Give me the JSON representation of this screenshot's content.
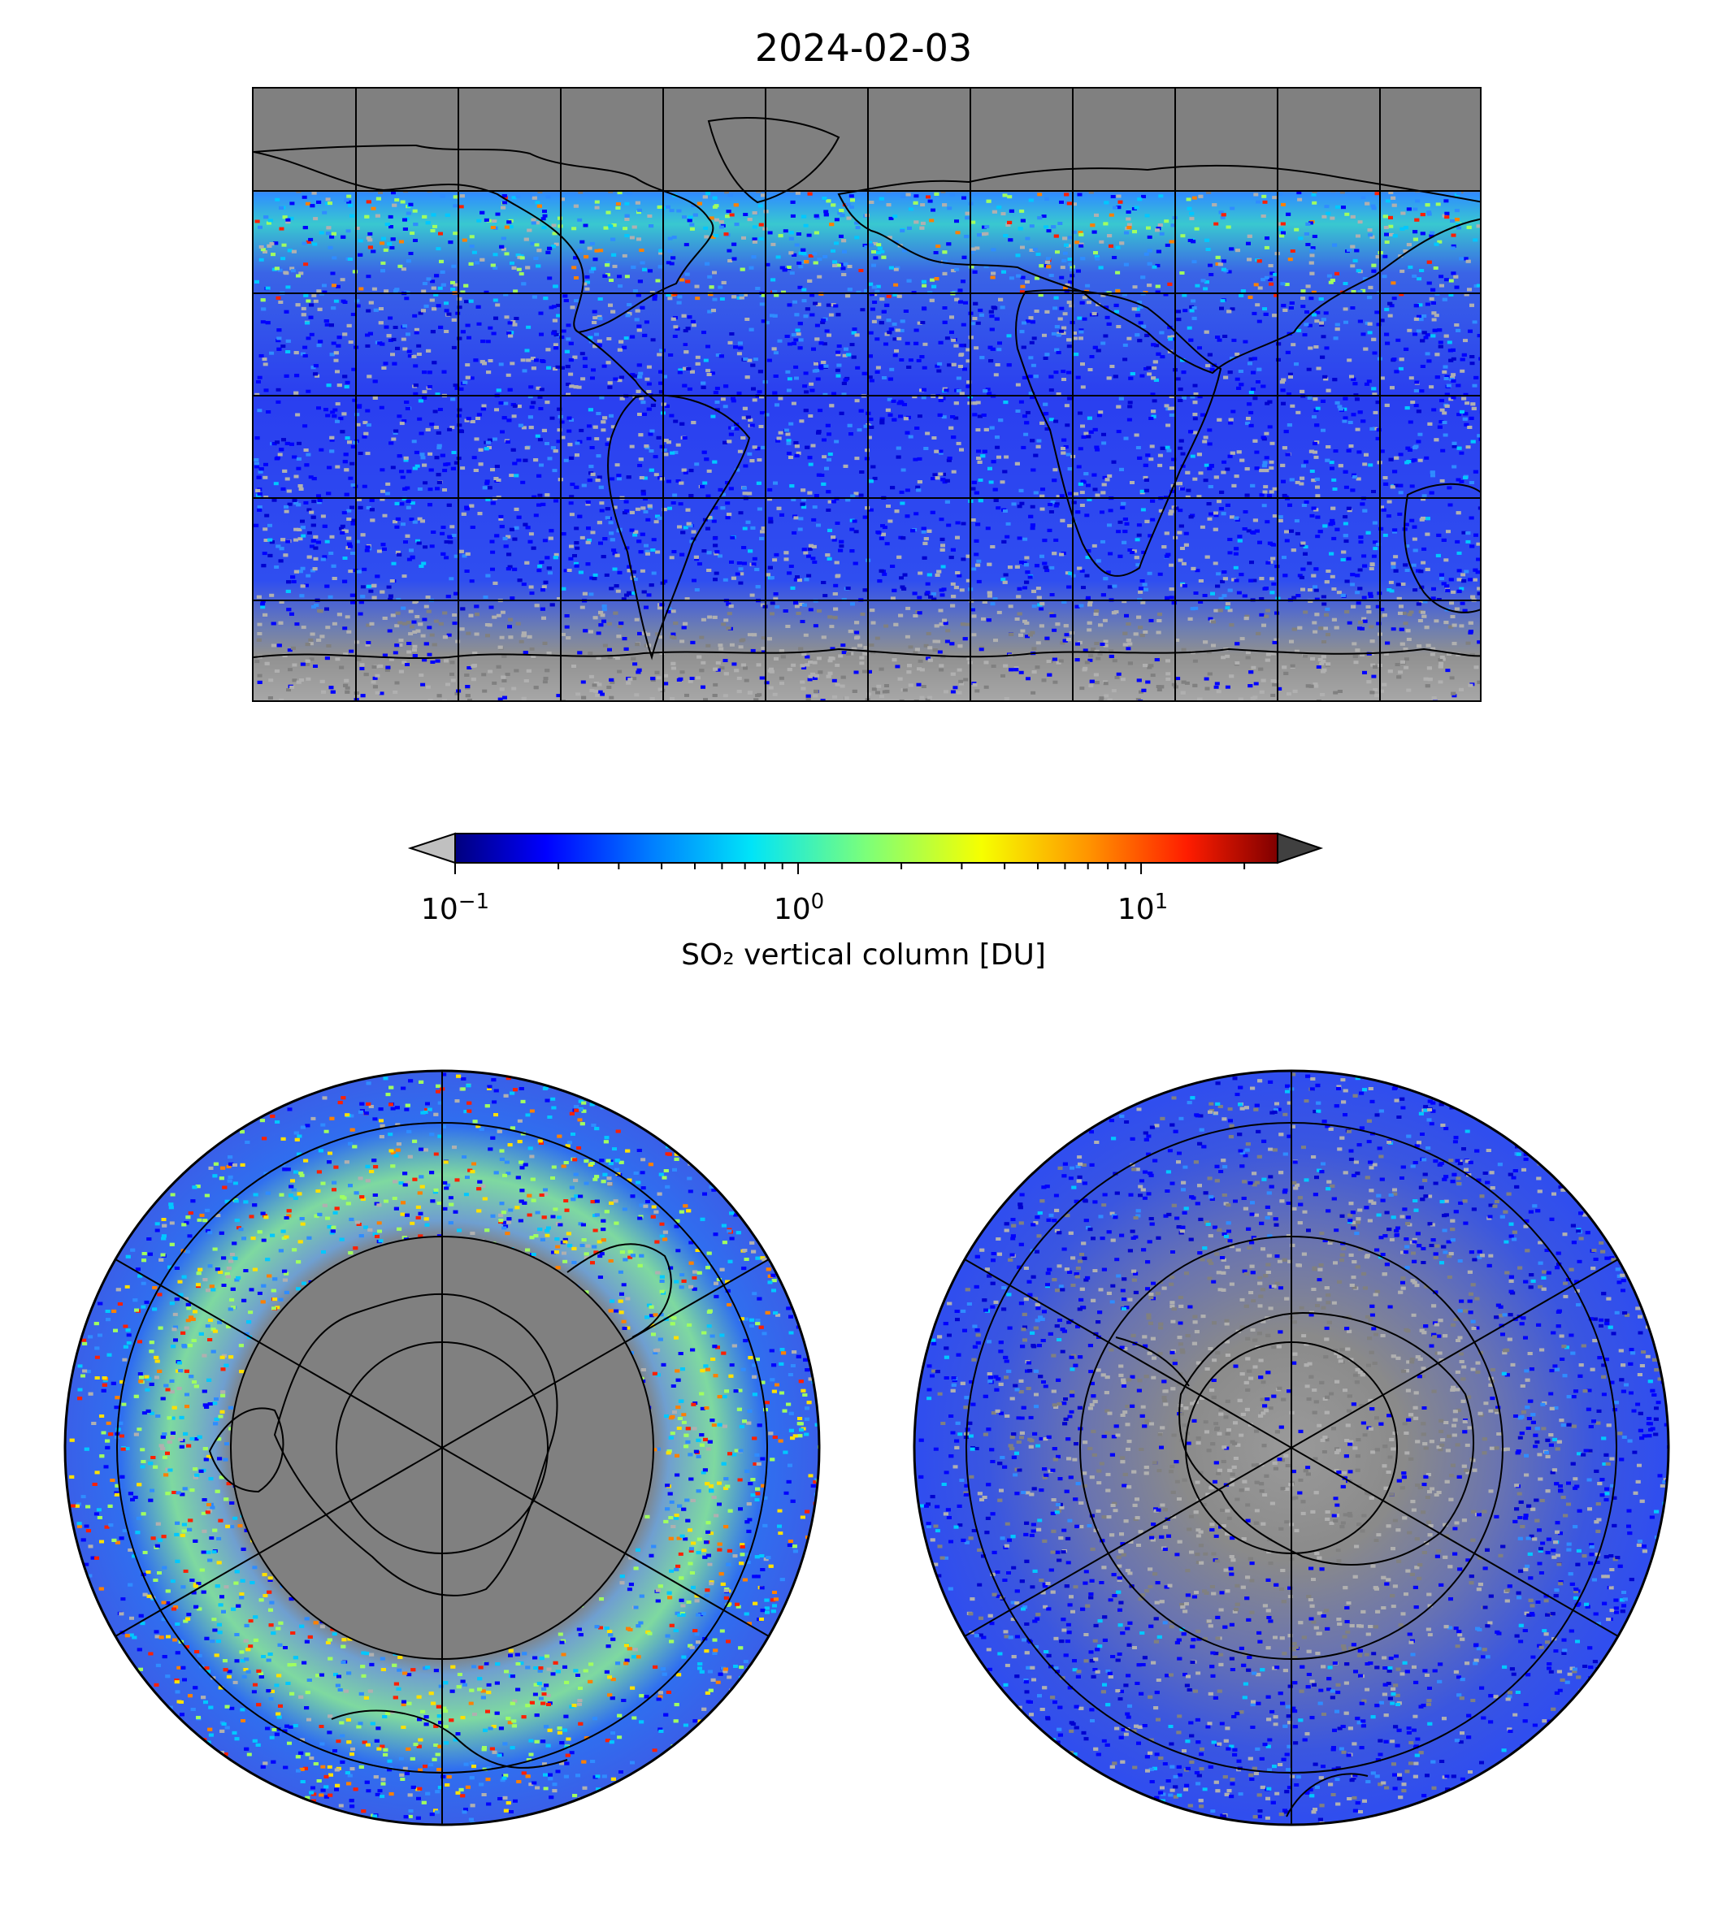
{
  "title": "2024-02-03",
  "colorbar": {
    "label": "SO₂ vertical column [DU]",
    "ticks": [
      {
        "base": "10",
        "exp": "−1",
        "value": 0.1
      },
      {
        "base": "10",
        "exp": "0",
        "value": 1
      },
      {
        "base": "10",
        "exp": "1",
        "value": 10
      }
    ],
    "scale": "log",
    "range": [
      0.1,
      25
    ],
    "colormap": "jet",
    "under_color": "#c0c0c0",
    "over_color": "#404040"
  },
  "maps": {
    "global": {
      "projection": "equirectangular",
      "gridlines": true,
      "land_no_data_color": "#808080"
    },
    "north_polar": {
      "projection": "north-polar-stereographic",
      "gridlines": true
    },
    "south_polar": {
      "projection": "south-polar-stereographic",
      "gridlines": true
    }
  }
}
